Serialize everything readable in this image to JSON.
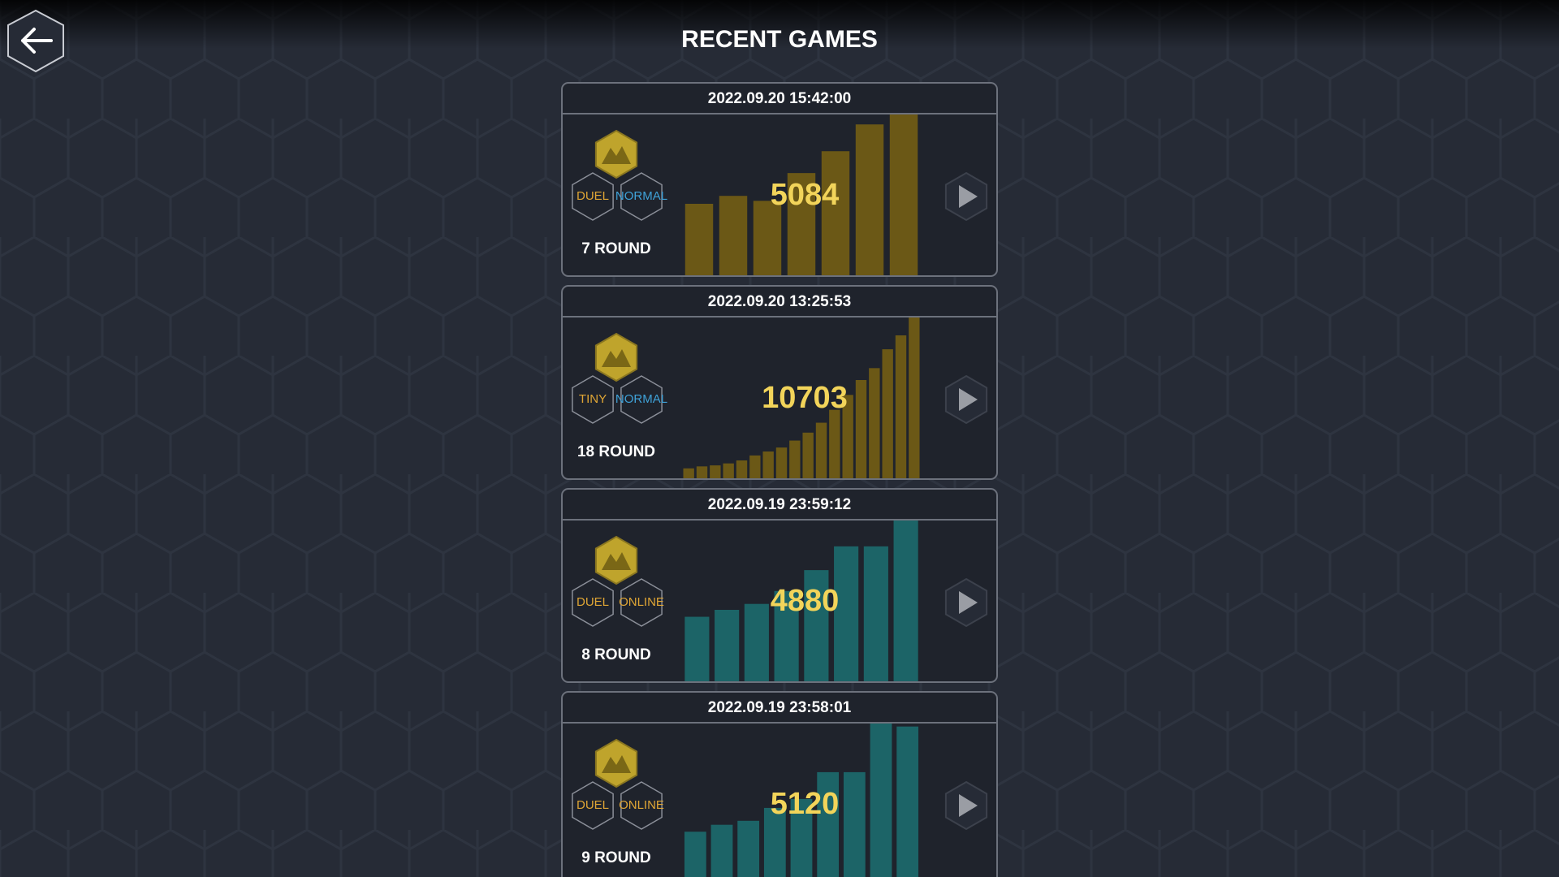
{
  "header": {
    "title": "RECENT GAMES"
  },
  "games": [
    {
      "date": "2022.09.20 15:42:00",
      "tags": [
        {
          "text": "DUEL",
          "color": "#e0a635"
        },
        {
          "text": "NORMAL",
          "color": "#3fa2d8"
        }
      ],
      "rounds": "7 ROUND",
      "score": "5084",
      "color": "#6b5816",
      "ylim": [
        0,
        5084
      ],
      "values": [
        2260,
        2511,
        2354,
        3232,
        3923,
        4770,
        5084
      ]
    },
    {
      "date": "2022.09.20 13:25:53",
      "tags": [
        {
          "text": "TINY",
          "color": "#e0a635"
        },
        {
          "text": "NORMAL",
          "color": "#3fa2d8"
        }
      ],
      "rounds": "18 ROUND",
      "score": "10703",
      "color": "#6b5816",
      "ylim": [
        0,
        10703
      ],
      "values": [
        661,
        793,
        859,
        991,
        1189,
        1520,
        1784,
        2048,
        2511,
        3039,
        3700,
        4559,
        5550,
        6541,
        7334,
        8589,
        9514,
        10703
      ]
    },
    {
      "date": "2022.09.19 23:59:12",
      "tags": [
        {
          "text": "DUEL",
          "color": "#e0a635"
        },
        {
          "text": "ONLINE",
          "color": "#e0a635"
        }
      ],
      "rounds": "8 ROUND",
      "score": "4880",
      "color": "#1c6467",
      "ylim": [
        0,
        4880
      ],
      "values": [
        1958,
        2169,
        2349,
        2741,
        3374,
        4096,
        4096,
        4880
      ]
    },
    {
      "date": "2022.09.19 23:58:01",
      "tags": [
        {
          "text": "DUEL",
          "color": "#e0a635"
        },
        {
          "text": "ONLINE",
          "color": "#e0a635"
        }
      ],
      "rounds": "9 ROUND",
      "score": "5120",
      "color": "#1c6467",
      "ylim": [
        0,
        5120
      ],
      "values": [
        1675,
        1896,
        2022,
        2433,
        2718,
        3571,
        3571,
        5120,
        5025
      ]
    }
  ]
}
